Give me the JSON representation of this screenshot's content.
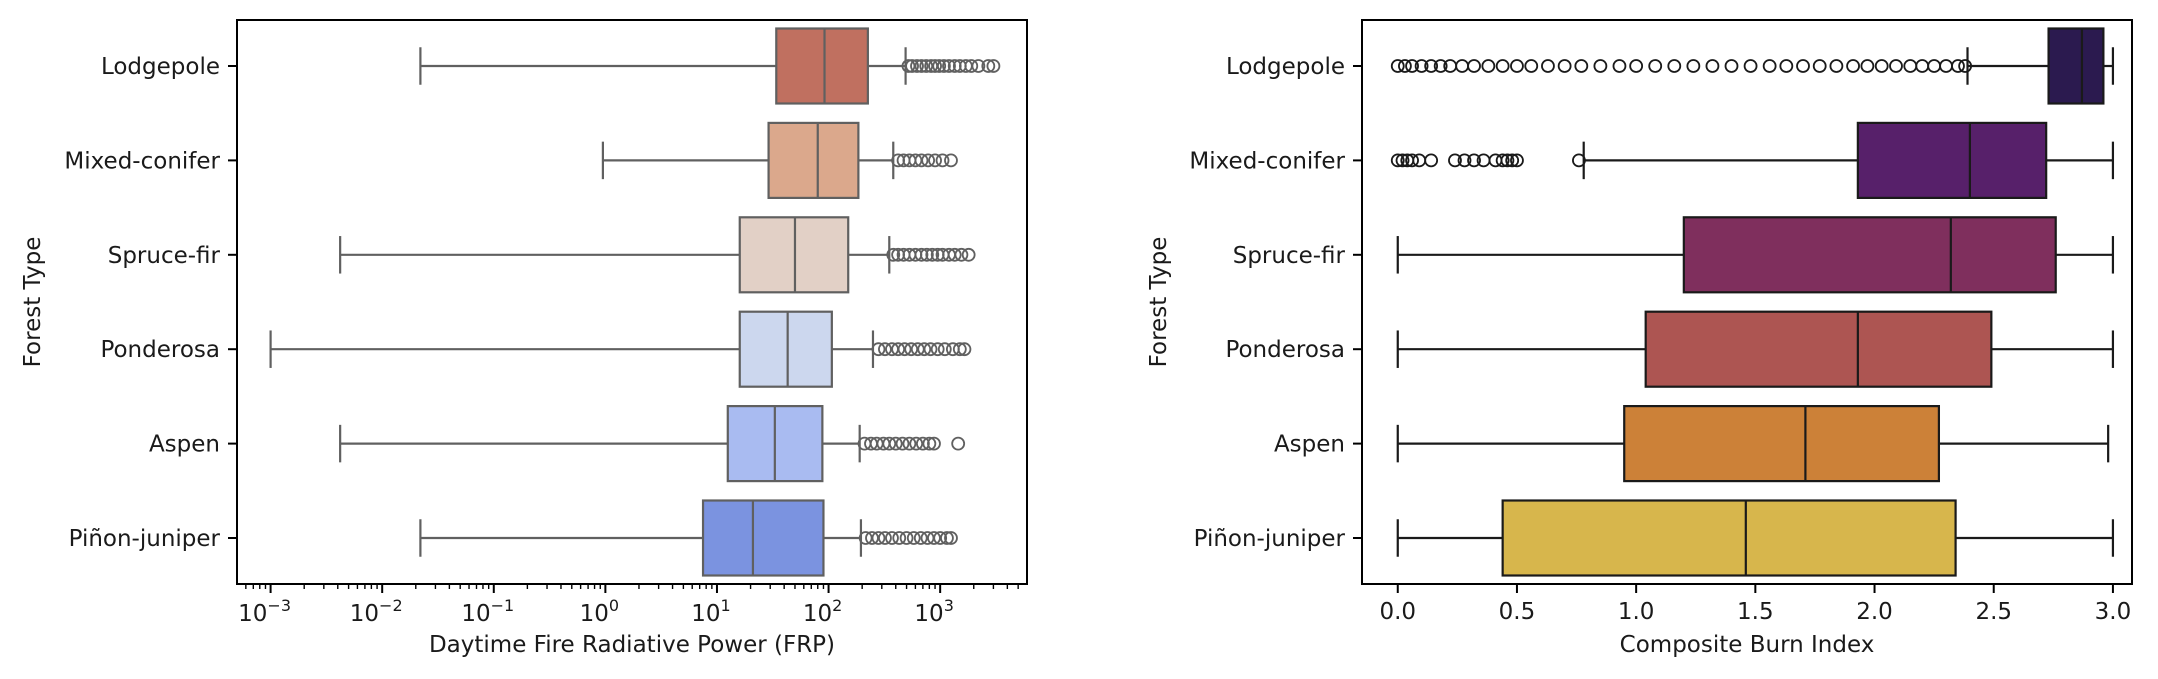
{
  "chart_data": [
    {
      "type": "box",
      "orientation": "horizontal",
      "xscale": "log",
      "xlabel": "Daytime Fire Radiative Power (FRP)",
      "ylabel": "Forest Type",
      "xlim": [
        0.0005,
        6000
      ],
      "xticks": [
        {
          "value": 0.001,
          "base": "10",
          "exp": "−3"
        },
        {
          "value": 0.01,
          "base": "10",
          "exp": "−2"
        },
        {
          "value": 0.1,
          "base": "10",
          "exp": "−1"
        },
        {
          "value": 1,
          "base": "10",
          "exp": "0"
        },
        {
          "value": 10,
          "base": "10",
          "exp": "1"
        },
        {
          "value": 100,
          "base": "10",
          "exp": "2"
        },
        {
          "value": 1000,
          "base": "10",
          "exp": "3"
        }
      ],
      "categories": [
        "Lodgepole",
        "Mixed-conifer",
        "Spruce-fir",
        "Ponderosa",
        "Aspen",
        "Piñon-juniper"
      ],
      "boxes": [
        {
          "category": "Lodgepole",
          "whisker_low": 0.022,
          "q1": 34,
          "median": 92,
          "q3": 225,
          "whisker_high": 490,
          "outliers": [
            520,
            560,
            620,
            680,
            750,
            830,
            900,
            980,
            1080,
            1200,
            1350,
            1500,
            1700,
            1900,
            2200,
            2700,
            3000
          ],
          "color": "#c07060"
        },
        {
          "category": "Mixed-conifer",
          "whisker_low": 0.95,
          "q1": 29,
          "median": 80,
          "q3": 185,
          "whisker_high": 380,
          "outliers": [
            420,
            470,
            530,
            600,
            680,
            780,
            900,
            1050,
            1250
          ],
          "color": "#dba88c"
        },
        {
          "category": "Spruce-fir",
          "whisker_low": 0.0042,
          "q1": 16,
          "median": 50,
          "q3": 150,
          "whisker_high": 350,
          "outliers": [
            380,
            420,
            470,
            530,
            600,
            680,
            760,
            850,
            950,
            1050,
            1200,
            1350,
            1550,
            1800
          ],
          "color": "#e2d0c6"
        },
        {
          "category": "Ponderosa",
          "whisker_low": 0.001,
          "q1": 16,
          "median": 43,
          "q3": 107,
          "whisker_high": 250,
          "outliers": [
            280,
            320,
            370,
            420,
            480,
            550,
            630,
            720,
            820,
            950,
            1100,
            1300,
            1500,
            1650
          ],
          "color": "#ccd7ee"
        },
        {
          "category": "Aspen",
          "whisker_low": 0.0042,
          "q1": 12.5,
          "median": 33,
          "q3": 88,
          "whisker_high": 190,
          "outliers": [
            210,
            240,
            270,
            310,
            350,
            400,
            460,
            530,
            610,
            700,
            800,
            880,
            1450
          ],
          "color": "#a9bbf1"
        },
        {
          "category": "Piñon-juniper",
          "whisker_low": 0.022,
          "q1": 7.5,
          "median": 21,
          "q3": 90,
          "whisker_high": 195,
          "outliers": [
            215,
            245,
            280,
            320,
            370,
            430,
            500,
            580,
            670,
            770,
            880,
            1000,
            1150,
            1250
          ],
          "color": "#7b93e0"
        }
      ]
    },
    {
      "type": "box",
      "orientation": "horizontal",
      "xscale": "linear",
      "xlabel": "Composite Burn Index",
      "ylabel": "Forest Type",
      "xlim": [
        -0.15,
        3.08
      ],
      "xticks": [
        {
          "value": 0.0,
          "label": "0.0"
        },
        {
          "value": 0.5,
          "label": "0.5"
        },
        {
          "value": 1.0,
          "label": "1.0"
        },
        {
          "value": 1.5,
          "label": "1.5"
        },
        {
          "value": 2.0,
          "label": "2.0"
        },
        {
          "value": 2.5,
          "label": "2.5"
        },
        {
          "value": 3.0,
          "label": "3.0"
        }
      ],
      "categories": [
        "Lodgepole",
        "Mixed-conifer",
        "Spruce-fir",
        "Ponderosa",
        "Aspen",
        "Piñon-juniper"
      ],
      "boxes": [
        {
          "category": "Lodgepole",
          "whisker_low": 2.39,
          "q1": 2.73,
          "median": 2.87,
          "q3": 2.96,
          "whisker_high": 3.0,
          "outliers": [
            0.0,
            0.03,
            0.06,
            0.1,
            0.14,
            0.18,
            0.22,
            0.27,
            0.32,
            0.38,
            0.44,
            0.5,
            0.56,
            0.63,
            0.7,
            0.77,
            0.85,
            0.93,
            1.0,
            1.08,
            1.16,
            1.24,
            1.32,
            1.4,
            1.48,
            1.56,
            1.63,
            1.7,
            1.77,
            1.84,
            1.91,
            1.97,
            2.03,
            2.09,
            2.15,
            2.2,
            2.25,
            2.3,
            2.35,
            2.38
          ],
          "color": "#2b1a4f"
        },
        {
          "category": "Mixed-conifer",
          "whisker_low": 0.78,
          "q1": 1.93,
          "median": 2.4,
          "q3": 2.72,
          "whisker_high": 3.0,
          "outliers": [
            0.0,
            0.02,
            0.04,
            0.06,
            0.09,
            0.14,
            0.24,
            0.28,
            0.32,
            0.36,
            0.41,
            0.44,
            0.46,
            0.48,
            0.5,
            0.76
          ],
          "color": "#57206a"
        },
        {
          "category": "Spruce-fir",
          "whisker_low": 0.0,
          "q1": 1.2,
          "median": 2.32,
          "q3": 2.76,
          "whisker_high": 3.0,
          "outliers": [],
          "color": "#7f2f5d"
        },
        {
          "category": "Ponderosa",
          "whisker_low": 0.0,
          "q1": 1.04,
          "median": 1.93,
          "q3": 2.49,
          "whisker_high": 3.0,
          "outliers": [],
          "color": "#ad5552"
        },
        {
          "category": "Aspen",
          "whisker_low": 0.0,
          "q1": 0.95,
          "median": 1.71,
          "q3": 2.27,
          "whisker_high": 2.98,
          "outliers": [],
          "color": "#cc8138"
        },
        {
          "category": "Piñon-juniper",
          "whisker_low": 0.0,
          "q1": 0.44,
          "median": 1.46,
          "q3": 2.34,
          "whisker_high": 3.0,
          "outliers": [],
          "color": "#d7b64c"
        }
      ]
    }
  ]
}
